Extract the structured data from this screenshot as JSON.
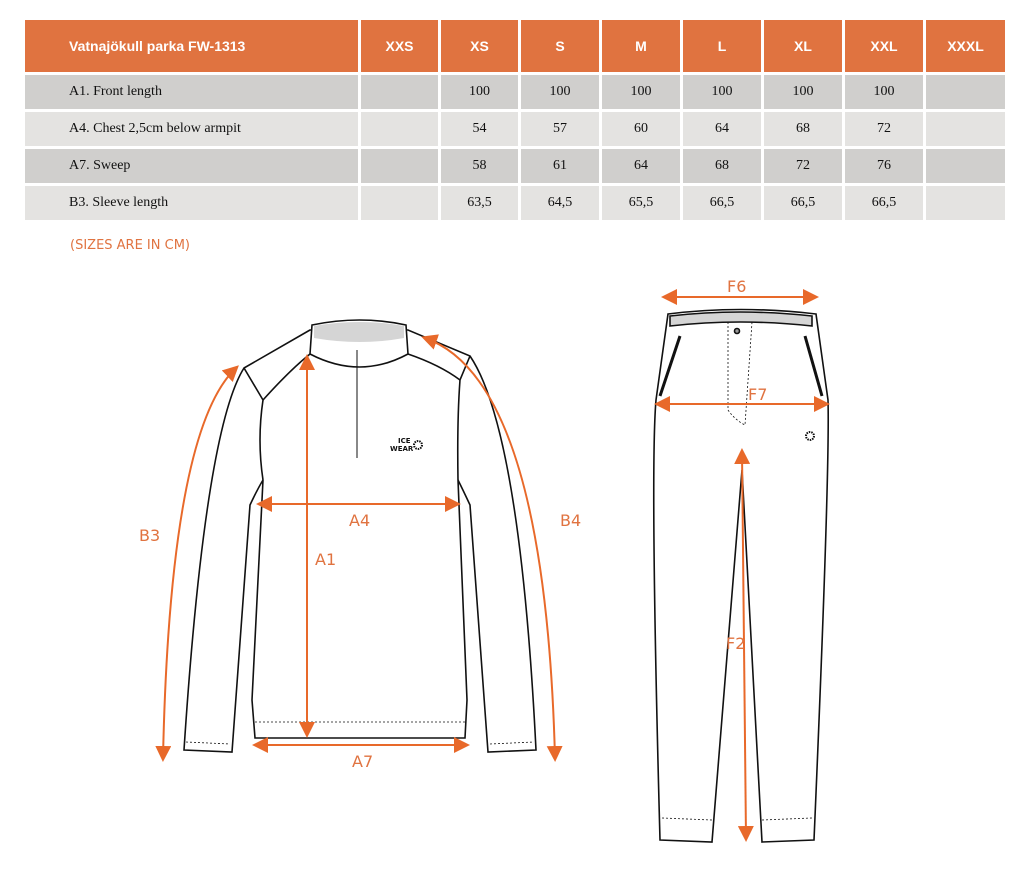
{
  "table": {
    "title": "Vatnajökull parka FW-1313",
    "sizes": [
      "XXS",
      "XS",
      "S",
      "M",
      "L",
      "XL",
      "XXL",
      "XXXL"
    ],
    "rows": [
      {
        "label": "A1. Front length",
        "values": [
          "",
          "100",
          "100",
          "100",
          "100",
          "100",
          "100",
          ""
        ]
      },
      {
        "label": "A4. Chest 2,5cm below armpit",
        "values": [
          "",
          "54",
          "57",
          "60",
          "64",
          "68",
          "72",
          ""
        ]
      },
      {
        "label": "A7. Sweep",
        "values": [
          "",
          "58",
          "61",
          "64",
          "68",
          "72",
          "76",
          ""
        ]
      },
      {
        "label": "B3. Sleeve length",
        "values": [
          "",
          "63,5",
          "64,5",
          "65,5",
          "66,5",
          "66,5",
          "66,5",
          ""
        ]
      }
    ]
  },
  "note": "(SIZES ARE IN CM)",
  "diagram": {
    "labels": {
      "a1": "A1",
      "a4": "A4",
      "a7": "A7",
      "b3": "B3",
      "b4": "B4",
      "f2": "F2",
      "f6": "F6",
      "f7": "F7"
    },
    "logo": "ICE WEAR",
    "accent_color": "#E07340"
  }
}
